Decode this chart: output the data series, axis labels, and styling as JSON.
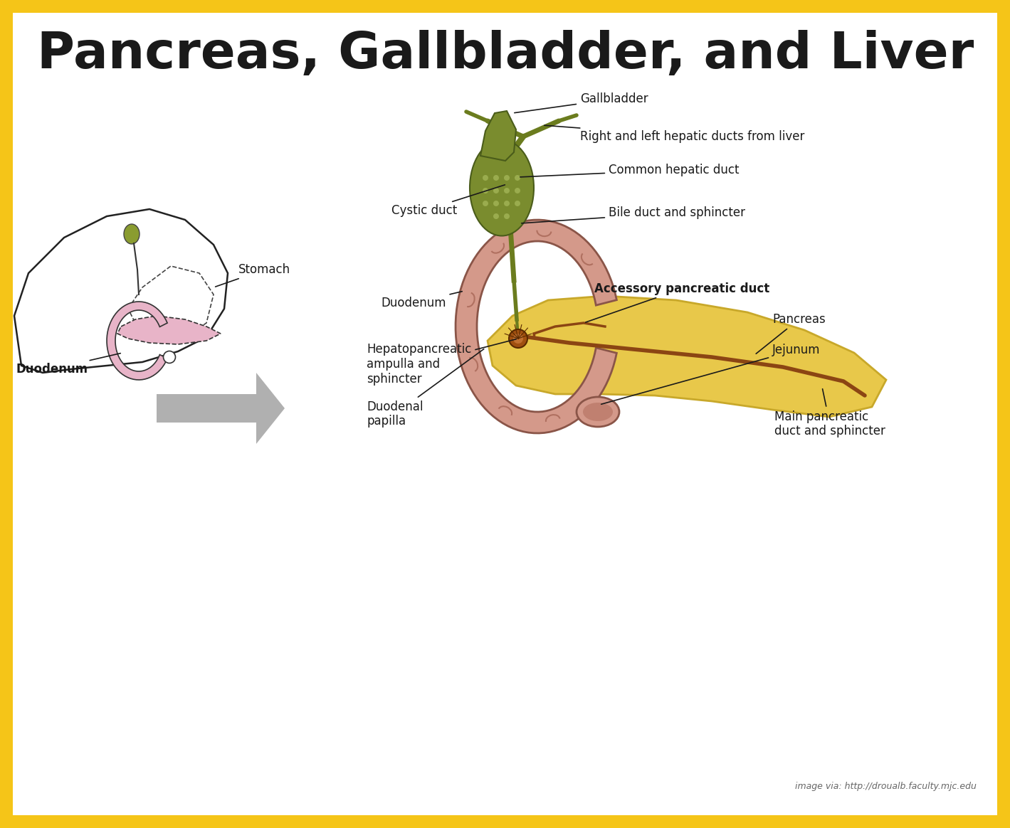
{
  "title": "Pancreas, Gallbladder, and Liver",
  "title_fontsize": 52,
  "title_fontweight": "bold",
  "title_color": "#1a1a1a",
  "background_color": "#ffffff",
  "border_color": "#F5C518",
  "border_width": 18,
  "credit_text": "image via: http://droualb.faculty.mjc.edu",
  "credit_fontsize": 9,
  "labels": {
    "stomach": "Stomach",
    "duodenum_small": "Duodenum",
    "gallbladder": "Gallbladder",
    "right_left_hepatic": "Right and left hepatic ducts from liver",
    "common_hepatic": "Common hepatic duct",
    "bile_duct": "Bile duct and sphincter",
    "cystic_duct": "Cystic duct",
    "duodenum": "Duodenum",
    "hepatopancreatic": "Hepatopancreatic\nampulla and\nsphincter",
    "accessory": "Accessory pancreatic duct",
    "pancreas": "Pancreas",
    "jejunum": "Jejunum",
    "main_pancreatic": "Main pancreatic\nduct and sphincter",
    "duodenal_papilla": "Duodenal\npapilla"
  },
  "colors": {
    "liver_outline": "#1a1a1a",
    "liver_fill": "#ffffff",
    "pancreas_small_fill": "#e8b4c8",
    "duodenum_small_fill": "#e8b4c8",
    "gallbladder_fill": "#7a8c2e",
    "gallbladder_dark": "#5a6a1e",
    "bile_duct_fill": "#6b7c1e",
    "pancreas_fill": "#e8c84a",
    "duodenum_fill": "#d4998a",
    "duodenum_highlight": "#c07a6a",
    "duct_color": "#8B4513",
    "arrow_color": "#9a9a9a",
    "label_color": "#1a1a1a",
    "accessory_label_color": "#1a1a1a",
    "line_color": "#1a1a1a"
  }
}
